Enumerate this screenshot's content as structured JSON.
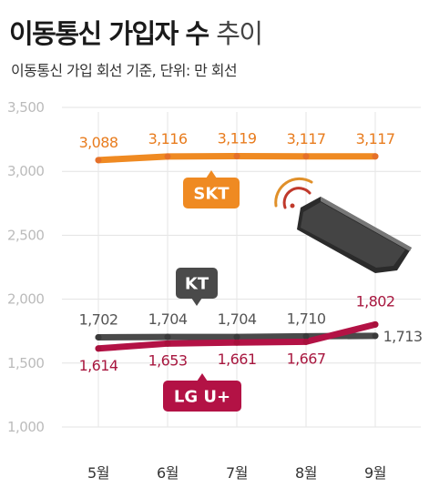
{
  "title_bold": "이동통신 가입자 수",
  "title_light": "추이",
  "subtitle": "이동통신 가입 회선 기준, 단위: 만 회선",
  "colors": {
    "SKT": "#ef8a22",
    "KT": "#4a4a4a",
    "LG U+": "#b31245"
  },
  "icon": "smartphone-wifi-icon",
  "chart_data": {
    "type": "line",
    "categories": [
      "5월",
      "6월",
      "7월",
      "8월",
      "9월"
    ],
    "ylim": [
      1000,
      3500
    ],
    "yticks": [
      "1,000",
      "1,500",
      "2,000",
      "2,500",
      "3,000",
      "3,500"
    ],
    "grid": true,
    "series": [
      {
        "name": "SKT",
        "values": [
          3088,
          3116,
          3119,
          3117,
          3117
        ],
        "labels": [
          "3,088",
          "3,116",
          "3,119",
          "3,117",
          "3,117"
        ]
      },
      {
        "name": "KT",
        "values": [
          1702,
          1704,
          1704,
          1710,
          1713
        ],
        "labels": [
          "1,702",
          "1,704",
          "1,704",
          "1,710",
          "1,713"
        ]
      },
      {
        "name": "LG U+",
        "values": [
          1614,
          1653,
          1661,
          1667,
          1802
        ],
        "labels": [
          "1,614",
          "1,653",
          "1,661",
          "1,667",
          "1,802"
        ]
      }
    ]
  }
}
